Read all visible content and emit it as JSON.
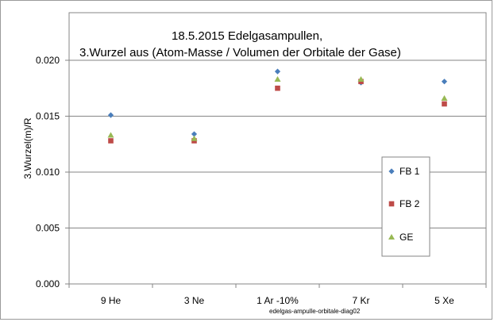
{
  "chart_data": {
    "type": "scatter",
    "title_line1": "18.5.2015   Edelgasampullen,",
    "title_line2": "3.Wurzel aus (Atom-Masse / Volumen der Orbitale der Gase)",
    "xlabel": "",
    "ylabel": "3.Wurzel(m)/R",
    "categories": [
      "9 He",
      "3 Ne",
      "1 Ar -10%",
      "7 Kr",
      "5 Xe"
    ],
    "ylim": [
      0,
      0.02
    ],
    "yticks": [
      0.0,
      0.005,
      0.01,
      0.015,
      0.02
    ],
    "ytick_labels": [
      "0.000",
      "0.005",
      "0.010",
      "0.015",
      "0.020"
    ],
    "grid": true,
    "legend_position": "right",
    "footnote": "edelgas-ampulle-orbitale-diag02",
    "series": [
      {
        "name": "FB 1",
        "marker": "diamond",
        "color": "#4a7ebb",
        "values": [
          0.0151,
          0.0134,
          0.019,
          0.018,
          0.0181
        ]
      },
      {
        "name": "FB 2",
        "marker": "square",
        "color": "#be4b48",
        "values": [
          0.0128,
          0.0128,
          0.0175,
          0.0181,
          0.0161
        ]
      },
      {
        "name": "GE",
        "marker": "triangle",
        "color": "#98b954",
        "values": [
          0.0133,
          0.013,
          0.0183,
          0.0183,
          0.0166
        ]
      }
    ]
  }
}
